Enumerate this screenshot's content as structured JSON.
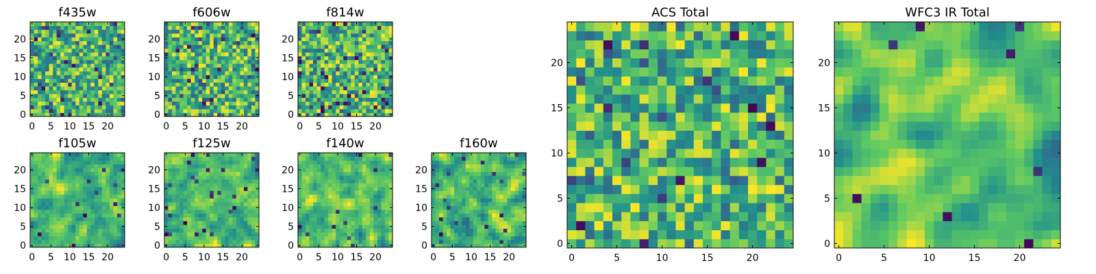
{
  "chart_data": [
    {
      "type": "heatmap",
      "title": "f435w",
      "xlim": [
        0,
        24
      ],
      "ylim": [
        0,
        24
      ],
      "xticks": [
        "0",
        "5",
        "10",
        "15",
        "20"
      ],
      "yticks": [
        "0",
        "5",
        "10",
        "15",
        "20"
      ],
      "seed": 11,
      "smoothing": 0,
      "sparse_dark": 0.05
    },
    {
      "type": "heatmap",
      "title": "f606w",
      "xlim": [
        0,
        24
      ],
      "ylim": [
        0,
        24
      ],
      "xticks": [
        "0",
        "5",
        "10",
        "15",
        "20"
      ],
      "yticks": [
        "0",
        "5",
        "10",
        "15",
        "20"
      ],
      "seed": 23,
      "smoothing": 0,
      "sparse_dark": 0.06
    },
    {
      "type": "heatmap",
      "title": "f814w",
      "xlim": [
        0,
        24
      ],
      "ylim": [
        0,
        24
      ],
      "xticks": [
        "0",
        "5",
        "10",
        "15",
        "20"
      ],
      "yticks": [
        "0",
        "5",
        "10",
        "15",
        "20"
      ],
      "seed": 37,
      "smoothing": 0,
      "sparse_dark": 0.07
    },
    {
      "type": "heatmap",
      "title": "f105w",
      "xlim": [
        0,
        24
      ],
      "ylim": [
        0,
        24
      ],
      "xticks": [
        "0",
        "5",
        "10",
        "15",
        "20"
      ],
      "yticks": [
        "0",
        "5",
        "10",
        "15",
        "20"
      ],
      "seed": 41,
      "smoothing": 1,
      "sparse_dark": 0.03
    },
    {
      "type": "heatmap",
      "title": "f125w",
      "xlim": [
        0,
        24
      ],
      "ylim": [
        0,
        24
      ],
      "xticks": [
        "0",
        "5",
        "10",
        "15",
        "20"
      ],
      "yticks": [
        "0",
        "5",
        "10",
        "15",
        "20"
      ],
      "seed": 53,
      "smoothing": 1,
      "sparse_dark": 0.04
    },
    {
      "type": "heatmap",
      "title": "f140w",
      "xlim": [
        0,
        24
      ],
      "ylim": [
        0,
        24
      ],
      "xticks": [
        "0",
        "5",
        "10",
        "15",
        "20"
      ],
      "yticks": [
        "0",
        "5",
        "10",
        "15",
        "20"
      ],
      "seed": 67,
      "smoothing": 1,
      "sparse_dark": 0.03
    },
    {
      "type": "heatmap",
      "title": "f160w",
      "xlim": [
        0,
        24
      ],
      "ylim": [
        0,
        24
      ],
      "xticks": [
        "0",
        "5",
        "10",
        "15",
        "20"
      ],
      "yticks": [
        "0",
        "5",
        "10",
        "15",
        "20"
      ],
      "seed": 79,
      "smoothing": 1,
      "sparse_dark": 0.03
    },
    {
      "type": "heatmap",
      "title": "ACS Total",
      "xlim": [
        0,
        24
      ],
      "ylim": [
        0,
        24
      ],
      "xticks": [
        "0",
        "5",
        "10",
        "15",
        "20"
      ],
      "yticks": [
        "0",
        "5",
        "10",
        "15",
        "20"
      ],
      "seed": 97,
      "smoothing": 0,
      "sparse_dark": 0.03
    },
    {
      "type": "heatmap",
      "title": "WFC3 IR Total",
      "xlim": [
        0,
        24
      ],
      "ylim": [
        0,
        24
      ],
      "xticks": [
        "0",
        "5",
        "10",
        "15",
        "20"
      ],
      "yticks": [
        "0",
        "5",
        "10",
        "15",
        "20"
      ],
      "seed": 113,
      "smoothing": 2,
      "sparse_dark": 0.02
    }
  ],
  "colormap": [
    "#440154",
    "#3b528b",
    "#21908d",
    "#5dc963",
    "#fde725"
  ]
}
